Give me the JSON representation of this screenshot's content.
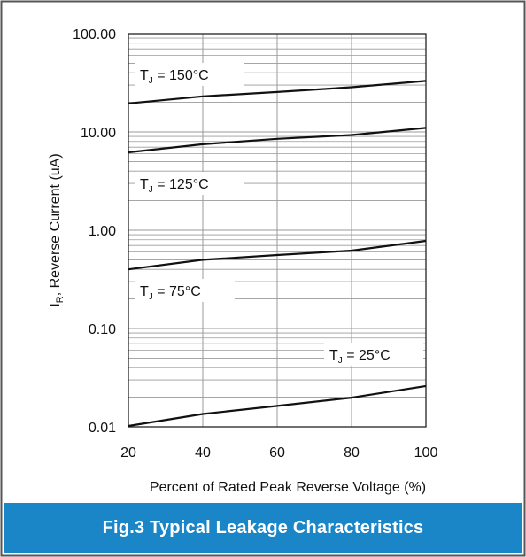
{
  "chart_data": {
    "type": "line",
    "y_scale": "log",
    "x_ticks": [
      "20",
      "40",
      "60",
      "80",
      "100"
    ],
    "y_ticks": [
      "100.00",
      "10.00",
      "1.00",
      "0.10",
      "0.01"
    ],
    "xlim": [
      20,
      100
    ],
    "ylim": [
      0.01,
      100
    ],
    "grid": true,
    "xlabel": "Percent of Rated Peak Reverse Voltage (%)",
    "ylabel": {
      "main": "I",
      "sub": "R",
      "rest": ", Reverse Current (uA)"
    },
    "series": [
      {
        "label": {
          "pre": "T",
          "sub": "J",
          "post": " = 150°C"
        },
        "x": [
          20,
          40,
          60,
          80,
          100
        ],
        "y": [
          19.5,
          23,
          25.5,
          28.5,
          33
        ]
      },
      {
        "label": {
          "pre": "T",
          "sub": "J",
          "post": " = 125°C"
        },
        "x": [
          20,
          40,
          60,
          80,
          100
        ],
        "y": [
          6.2,
          7.5,
          8.5,
          9.3,
          11
        ]
      },
      {
        "label": {
          "pre": "T",
          "sub": "J",
          "post": " = 75°C"
        },
        "x": [
          20,
          40,
          60,
          80,
          100
        ],
        "y": [
          0.4,
          0.5,
          0.56,
          0.62,
          0.78
        ]
      },
      {
        "label": {
          "pre": "T",
          "sub": "J",
          "post": " = 25°C"
        },
        "x": [
          20,
          40,
          60,
          80,
          100
        ],
        "y": [
          0.0102,
          0.0135,
          0.0163,
          0.0198,
          0.026
        ]
      }
    ]
  },
  "caption": "Fig.3 Typical Leakage Characteristics",
  "colors": {
    "banner": "#1a86c8",
    "curve": "#111111",
    "grid": "#9a9a9a"
  }
}
